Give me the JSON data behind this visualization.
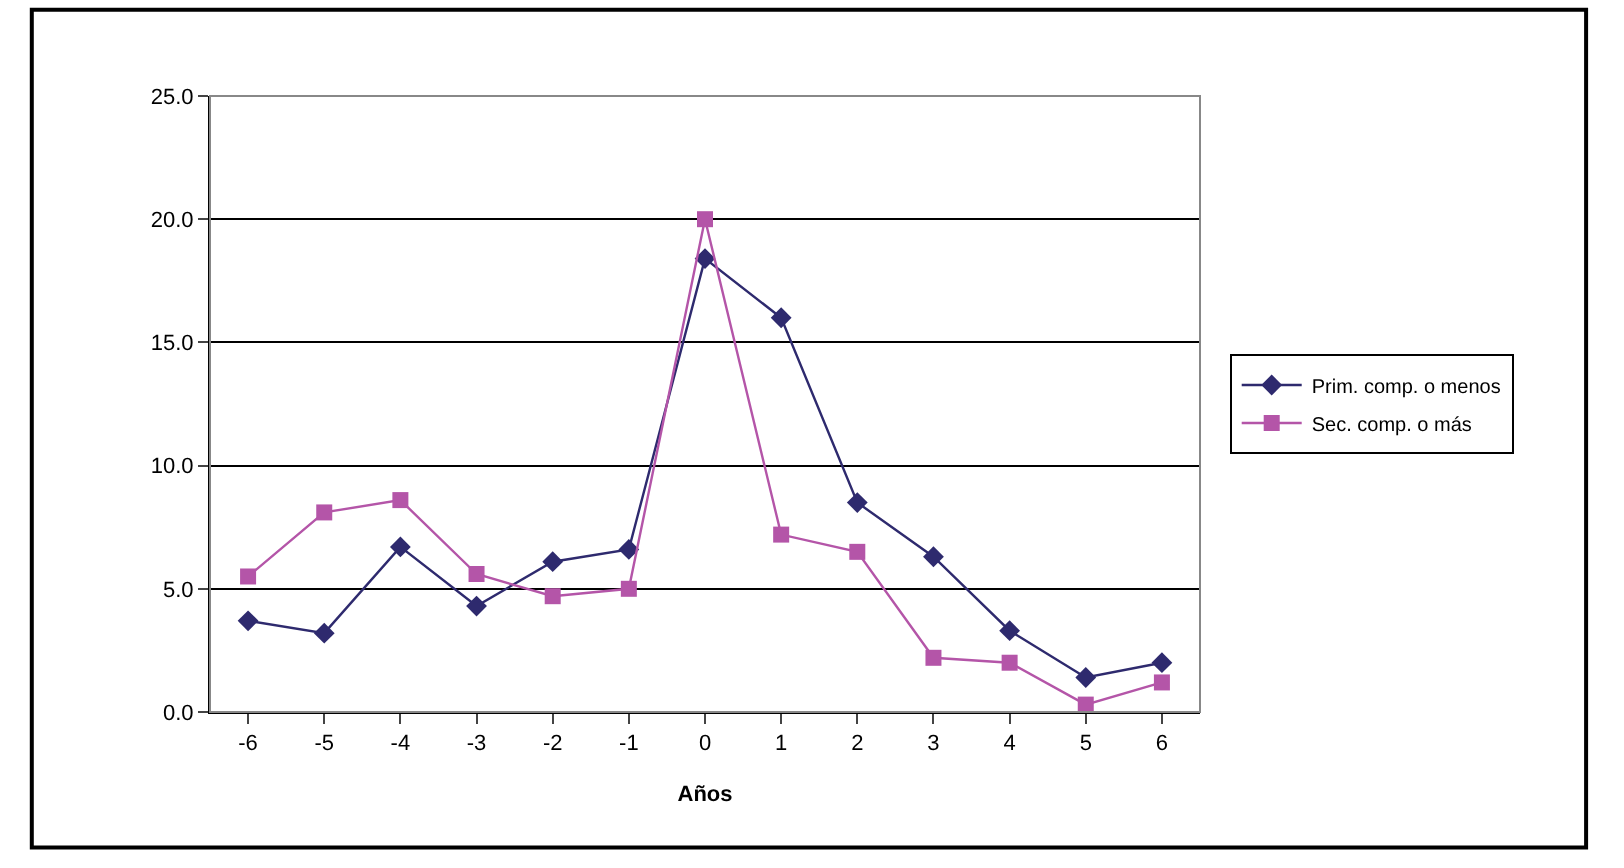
{
  "chart_data": {
    "type": "line",
    "xlabel": "Años",
    "categories": [
      "-6",
      "-5",
      "-4",
      "-3",
      "-2",
      "-1",
      "0",
      "1",
      "2",
      "3",
      "4",
      "5",
      "6"
    ],
    "series": [
      {
        "name": "Prim. comp. o menos",
        "color": "#2e2a6e",
        "marker": "diamond",
        "values": [
          3.7,
          3.2,
          6.7,
          4.3,
          6.1,
          6.6,
          18.4,
          16.0,
          8.5,
          6.3,
          3.3,
          1.4,
          2.0
        ]
      },
      {
        "name": "Sec. comp. o más",
        "color": "#b455a8",
        "marker": "square",
        "values": [
          5.5,
          8.1,
          8.6,
          5.6,
          4.7,
          5.0,
          20.0,
          7.2,
          6.5,
          2.2,
          2.0,
          0.3,
          1.2
        ]
      }
    ],
    "ylim": [
      0,
      25
    ],
    "yticks": [
      {
        "value": 0,
        "label": "0.0"
      },
      {
        "value": 5,
        "label": "5.0"
      },
      {
        "value": 10,
        "label": "10.0"
      },
      {
        "value": 15,
        "label": "15.0"
      },
      {
        "value": 20,
        "label": "20.0"
      },
      {
        "value": 25,
        "label": "25.0"
      }
    ],
    "grid": "y",
    "legend": "right",
    "line_style": "solid"
  }
}
